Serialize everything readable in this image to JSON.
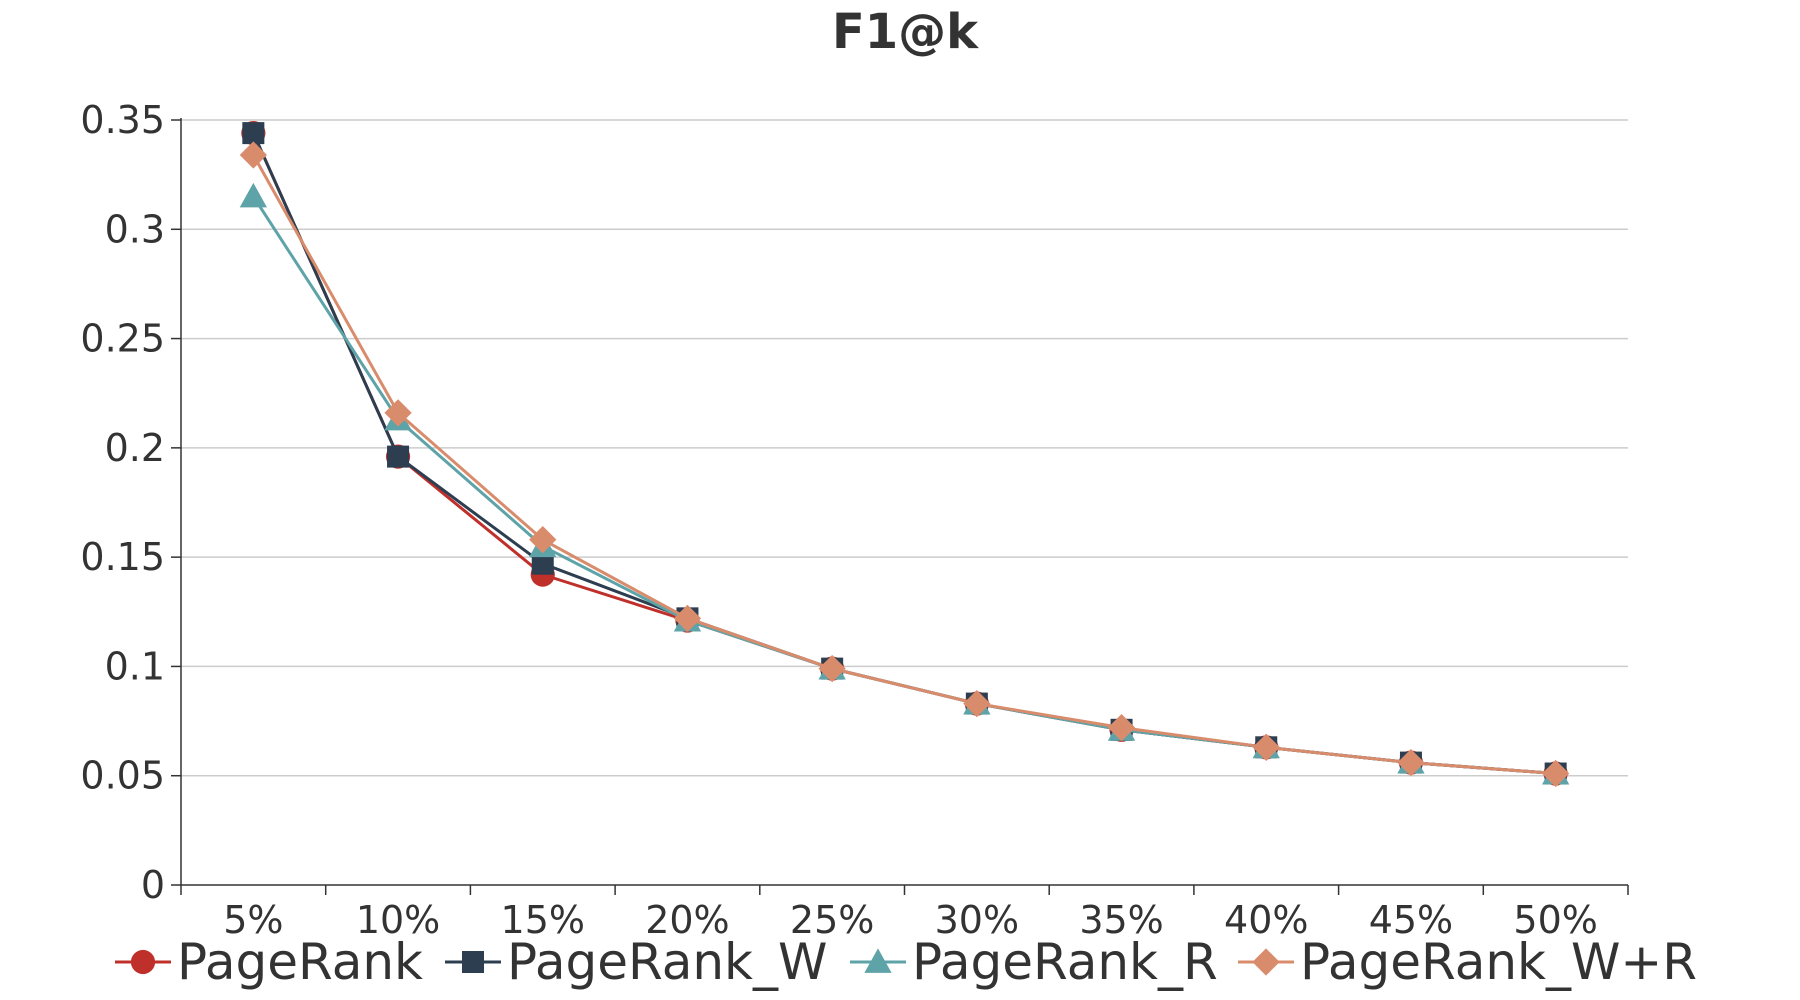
{
  "chart_data": {
    "type": "line",
    "title": "F1@k",
    "xlabel": "",
    "ylabel": "",
    "categories": [
      "5%",
      "10%",
      "15%",
      "20%",
      "25%",
      "30%",
      "35%",
      "40%",
      "45%",
      "50%"
    ],
    "ylim": [
      0,
      0.35
    ],
    "yticks": [
      0,
      0.05,
      0.1,
      0.15,
      0.2,
      0.25,
      0.3,
      0.35
    ],
    "ytick_labels": [
      "0",
      "0.05",
      "0.1",
      "0.15",
      "0.2",
      "0.25",
      "0.3",
      "0.35"
    ],
    "grid": true,
    "legend_position": "bottom",
    "series": [
      {
        "name": "PageRank",
        "color": "#c0302b",
        "marker": "circle",
        "values": [
          0.344,
          0.196,
          0.142,
          0.121,
          0.099,
          0.083,
          0.071,
          0.063,
          0.056,
          0.051
        ]
      },
      {
        "name": "PageRank_W",
        "color": "#2c3e50",
        "marker": "square",
        "values": [
          0.344,
          0.196,
          0.147,
          0.122,
          0.099,
          0.083,
          0.071,
          0.063,
          0.056,
          0.051
        ]
      },
      {
        "name": "PageRank_R",
        "color": "#5ea3a8",
        "marker": "triangle",
        "values": [
          0.315,
          0.213,
          0.155,
          0.121,
          0.099,
          0.083,
          0.071,
          0.063,
          0.056,
          0.051
        ]
      },
      {
        "name": "PageRank_W+R",
        "color": "#d98c6c",
        "marker": "diamond",
        "values": [
          0.334,
          0.216,
          0.158,
          0.122,
          0.099,
          0.083,
          0.072,
          0.063,
          0.056,
          0.051
        ]
      }
    ]
  }
}
